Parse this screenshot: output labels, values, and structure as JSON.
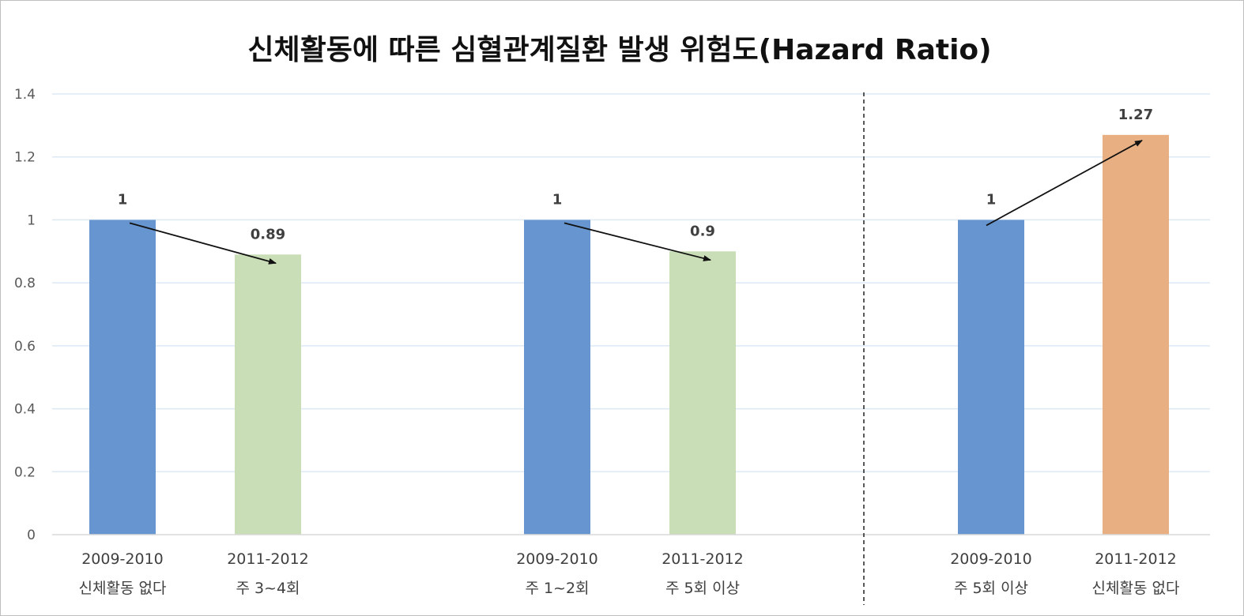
{
  "chart_data": {
    "type": "bar",
    "title": "신체활동에 따른 심혈관계질환 발생 위험도(Hazard Ratio)",
    "xlabel": "",
    "ylabel": "",
    "ylim": [
      0,
      1.4
    ],
    "yticks": [
      "0",
      "0.2",
      "0.4",
      "0.6",
      "0.8",
      "1",
      "1.2",
      "1.4"
    ],
    "ytick_values": [
      0,
      0.2,
      0.4,
      0.6,
      0.8,
      1.0,
      1.2,
      1.4
    ],
    "grid": true,
    "legend": "none",
    "colors": {
      "baseline": "#6795cf",
      "improved": "#c9deb6",
      "worsened": "#e8af82"
    },
    "groups": [
      {
        "bars": [
          {
            "period": "2009-2010",
            "label": "신체활동 없다",
            "value": 1,
            "value_label": "1",
            "color_key": "baseline"
          },
          {
            "period": "2011-2012",
            "label": "주 3~4회",
            "value": 0.89,
            "value_label": "0.89",
            "color_key": "improved"
          }
        ]
      },
      {
        "bars": [
          {
            "period": "2009-2010",
            "label": "주 1~2회",
            "value": 1,
            "value_label": "1",
            "color_key": "baseline"
          },
          {
            "period": "2011-2012",
            "label": "주 5회 이상",
            "value": 0.9,
            "value_label": "0.9",
            "color_key": "improved"
          }
        ]
      },
      {
        "bars": [
          {
            "period": "2009-2010",
            "label": "주 5회 이상",
            "value": 1,
            "value_label": "1",
            "color_key": "baseline"
          },
          {
            "period": "2011-2012",
            "label": "신체활동 없다",
            "value": 1.27,
            "value_label": "1.27",
            "color_key": "worsened"
          }
        ]
      }
    ]
  }
}
